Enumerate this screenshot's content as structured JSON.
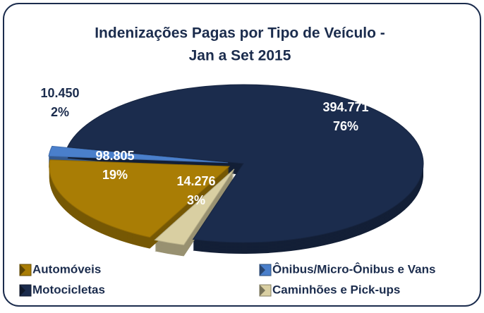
{
  "chart_data": {
    "type": "pie",
    "title": [
      "Indenizações Pagas por Tipo de Veículo -",
      "Jan a Set 2015"
    ],
    "categories": [
      "Automóveis",
      "Ônibus/Micro-Ônibus e Vans",
      "Motocicletas",
      "Caminhões e Pick-ups"
    ],
    "values": [
      98805,
      10450,
      394771,
      14276
    ],
    "value_labels": [
      "98.805",
      "10.450",
      "394.771",
      "14.276"
    ],
    "percent_labels": [
      "19%",
      "2%",
      "76%",
      "3%"
    ],
    "colors": [
      "#a97d05",
      "#4a7fcb",
      "#1b2c4d",
      "#d9cfa2"
    ],
    "legend": "bottom"
  }
}
